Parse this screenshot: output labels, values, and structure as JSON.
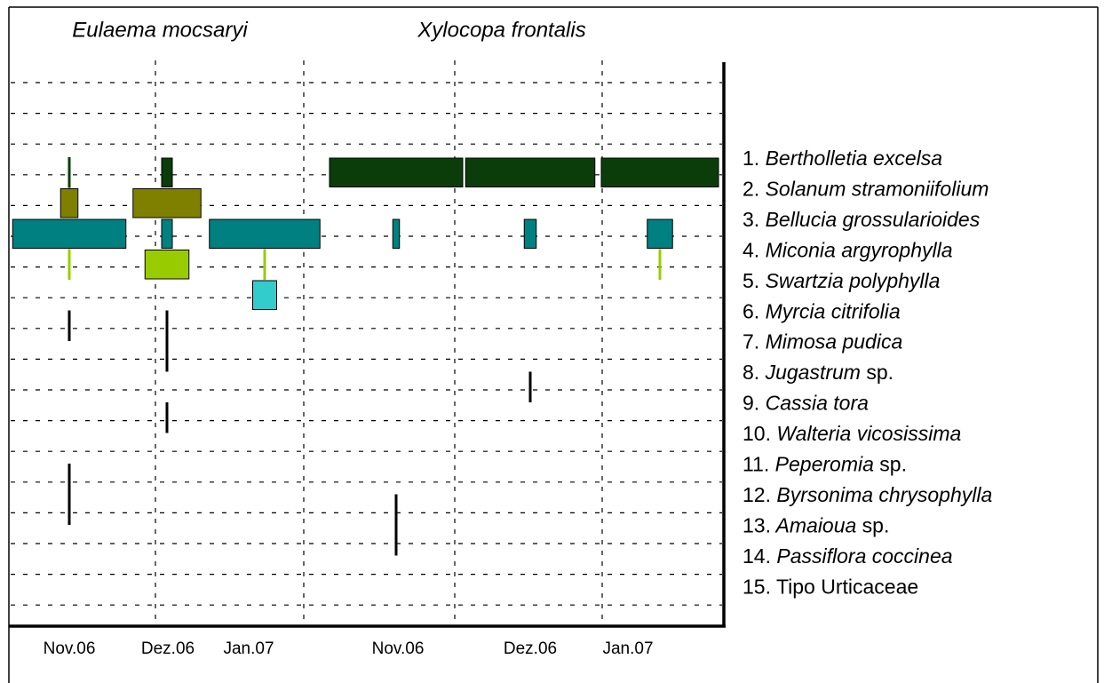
{
  "chart_data": {
    "type": "kite",
    "panels": [
      {
        "title": "Eulaema mocsaryi",
        "categories": [
          "Nov.06",
          "Dez.06",
          "Jan.07"
        ],
        "values": [
          [
            2,
            8,
            0
          ],
          [
            13,
            51,
            0
          ],
          [
            85,
            8,
            83
          ],
          [
            2,
            33,
            2
          ],
          [
            0,
            0,
            18
          ],
          [
            2,
            2,
            0
          ],
          [
            0,
            2,
            0
          ],
          [
            0,
            0,
            0
          ],
          [
            0,
            2,
            0
          ],
          [
            0,
            0,
            0
          ],
          [
            2,
            0,
            0
          ],
          [
            2,
            0,
            0
          ],
          [
            0,
            0,
            0
          ],
          [
            0,
            0,
            0
          ],
          [
            0,
            0,
            0
          ]
        ]
      },
      {
        "title": "Xylocopa frontalis",
        "categories": [
          "Nov.06",
          "Dez.06",
          "Jan.07"
        ],
        "values": [
          [
            100,
            97,
            88
          ],
          [
            0,
            0,
            0
          ],
          [
            5,
            9,
            19
          ],
          [
            0,
            0,
            2
          ],
          [
            0,
            0,
            0
          ],
          [
            0,
            0,
            0
          ],
          [
            0,
            0,
            0
          ],
          [
            0,
            2,
            0
          ],
          [
            0,
            0,
            0
          ],
          [
            0,
            0,
            0
          ],
          [
            0,
            0,
            0
          ],
          [
            2,
            0,
            0
          ],
          [
            2,
            0,
            0
          ],
          [
            0,
            0,
            0
          ],
          [
            0,
            0,
            0
          ]
        ]
      }
    ],
    "legend": [
      {
        "number": "1.",
        "name": "Bertholletia excelsa"
      },
      {
        "number": "2.",
        "name": "Solanum stramoniifolium"
      },
      {
        "number": "3.",
        "name": "Bellucia grossularioides"
      },
      {
        "number": "4.",
        "name": "Miconia argyrophylla"
      },
      {
        "number": "5.",
        "name": "Swartzia polyphylla"
      },
      {
        "number": "6.",
        "name": "Myrcia citrifolia"
      },
      {
        "number": "7.",
        "name": "Mimosa pudica"
      },
      {
        "number": "8.",
        "name": "Jugastrum",
        "suffix": "sp."
      },
      {
        "number": "9.",
        "name": "Cassia tora"
      },
      {
        "number": "10.",
        "name": "Walteria vicosissima"
      },
      {
        "number": "11.",
        "name": "Peperomia",
        "suffix": "sp."
      },
      {
        "number": "12.",
        "name": "Byrsonima chrysophylla"
      },
      {
        "number": "13.",
        "name": "Amaioua",
        "suffix": "sp."
      },
      {
        "number": "14.",
        "name": "Passiflora coccinea"
      },
      {
        "number": "15.",
        "name": "Tipo Urticaceae",
        "italic": false
      }
    ],
    "colors": [
      "#0b3d0b",
      "#808000",
      "#008080",
      "#99cc00",
      "#33cccc",
      "#000000",
      "#000000",
      "#000000",
      "#000000",
      "#000000",
      "#000000",
      "#000000",
      "#000000",
      "#000000",
      "#000000"
    ]
  }
}
